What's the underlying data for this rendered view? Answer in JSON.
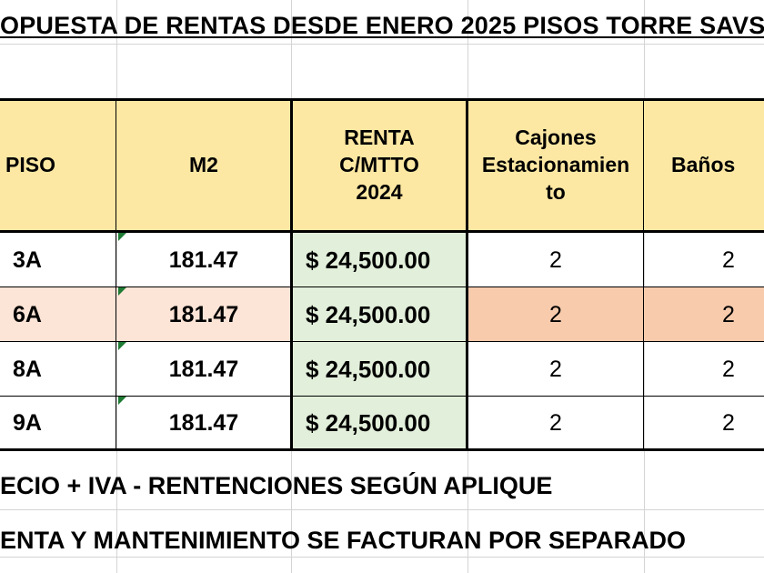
{
  "title": "OPUESTA DE RENTAS DESDE ENERO 2025 PISOS TORRE SAVS",
  "headers": {
    "piso": "PISO",
    "m2": "M2",
    "renta": "RENTA C/MTTO 2024",
    "cajones": "Cajones Estacionamien to",
    "banos": "Baños"
  },
  "rows": [
    {
      "piso": "3A",
      "m2": "181.47",
      "renta": "$ 24,500.00",
      "cajones": "2",
      "banos": "2"
    },
    {
      "piso": "6A",
      "m2": "181.47",
      "renta": "$ 24,500.00",
      "cajones": "2",
      "banos": "2"
    },
    {
      "piso": "8A",
      "m2": "181.47",
      "renta": "$ 24,500.00",
      "cajones": "2",
      "banos": "2"
    },
    {
      "piso": "9A",
      "m2": "181.47",
      "renta": "$ 24,500.00",
      "cajones": "2",
      "banos": "2"
    }
  ],
  "notes": [
    "ECIO + IVA - RENTENCIONES SEGÚN APLIQUE",
    "ENTA Y MANTENIMIENTO SE FACTURAN POR SEPARADO"
  ],
  "colors": {
    "header_fill": "#fde8a3",
    "rent_fill": "#e2efda",
    "highlight_row_light": "#fce4d6",
    "highlight_row_dark": "#f8cbad",
    "comment_marker": "#1e7b34"
  }
}
